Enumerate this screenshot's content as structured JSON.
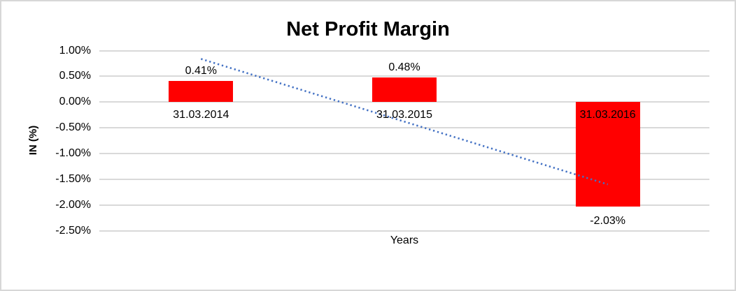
{
  "chart_data": {
    "type": "bar",
    "title": "Net Profit Margin",
    "xlabel": "Years",
    "ylabel": "IN (%)",
    "categories": [
      "31.03.2014",
      "31.03.2015",
      "31.03.2016"
    ],
    "values": [
      0.41,
      0.48,
      -2.03
    ],
    "data_labels": [
      "0.41%",
      "0.48%",
      "-2.03%"
    ],
    "ylim": [
      -2.5,
      1.0
    ],
    "ytick_step": 0.5,
    "yticks": [
      {
        "value": 1.0,
        "label": "1.00%"
      },
      {
        "value": 0.5,
        "label": "0.50%"
      },
      {
        "value": 0.0,
        "label": "0.00%"
      },
      {
        "value": -0.5,
        "label": "-0.50%"
      },
      {
        "value": -1.0,
        "label": "-1.00%"
      },
      {
        "value": -1.5,
        "label": "-1.50%"
      },
      {
        "value": -2.0,
        "label": "-2.00%"
      },
      {
        "value": -2.5,
        "label": "-2.50%"
      }
    ],
    "grid": true,
    "legend": "none",
    "bar_color": "#ff0000",
    "gridline_color": "#d9d9d9",
    "trendline": {
      "type": "linear",
      "style": "dotted",
      "color": "#4472c4",
      "endpoint_values": [
        0.84,
        -1.6
      ]
    }
  }
}
